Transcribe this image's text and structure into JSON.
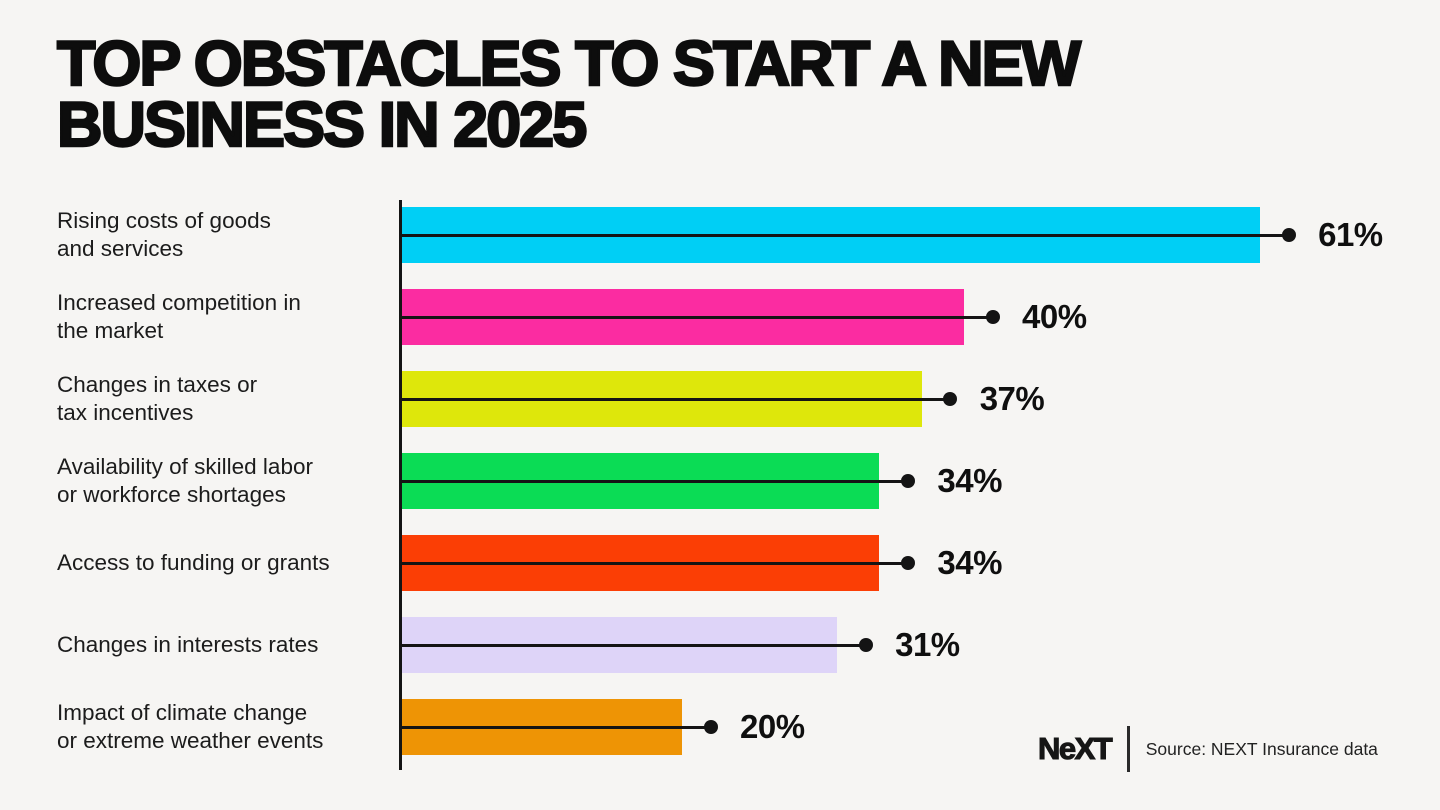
{
  "page": {
    "background": "#f6f5f3"
  },
  "title_lines": [
    "TOP OBSTACLES TO START A NEW",
    "BUSINESS IN 2025"
  ],
  "chart_data": {
    "type": "bar",
    "orientation": "horizontal",
    "title": "TOP OBSTACLES TO START A NEW BUSINESS IN 2025",
    "xlabel": "",
    "ylabel": "",
    "grid": false,
    "legend": false,
    "value_labels_shown": true,
    "categories": [
      "Rising costs of goods and services",
      "Increased competition in the market",
      "Changes in taxes or tax incentives",
      "Availability of skilled labor or workforce shortages",
      "Access to funding or grants",
      "Changes in interests rates",
      "Impact of climate change or extreme weather events"
    ],
    "categories_lines": [
      [
        "Rising costs of goods",
        "and services"
      ],
      [
        "Increased competition in",
        "the market"
      ],
      [
        "Changes in taxes or",
        "tax incentives"
      ],
      [
        "Availability of skilled labor",
        "or workforce shortages"
      ],
      [
        "Access to funding or grants"
      ],
      [
        "Changes in interests rates"
      ],
      [
        "Impact of climate change",
        "or extreme weather events"
      ]
    ],
    "values": [
      61,
      40,
      37,
      34,
      34,
      31,
      20
    ],
    "value_labels": [
      "61%",
      "40%",
      "37%",
      "34%",
      "34%",
      "31%",
      "20%"
    ],
    "bar_colors": [
      "#00cff5",
      "#fb2ca1",
      "#dee70b",
      "#0bdc55",
      "#fb3e05",
      "#ded4f8",
      "#ee9405"
    ],
    "axis_color": "#141414",
    "connector_color": "#141414"
  },
  "footer": {
    "logo_text": "NeXT",
    "source": "Source: NEXT Insurance data"
  }
}
